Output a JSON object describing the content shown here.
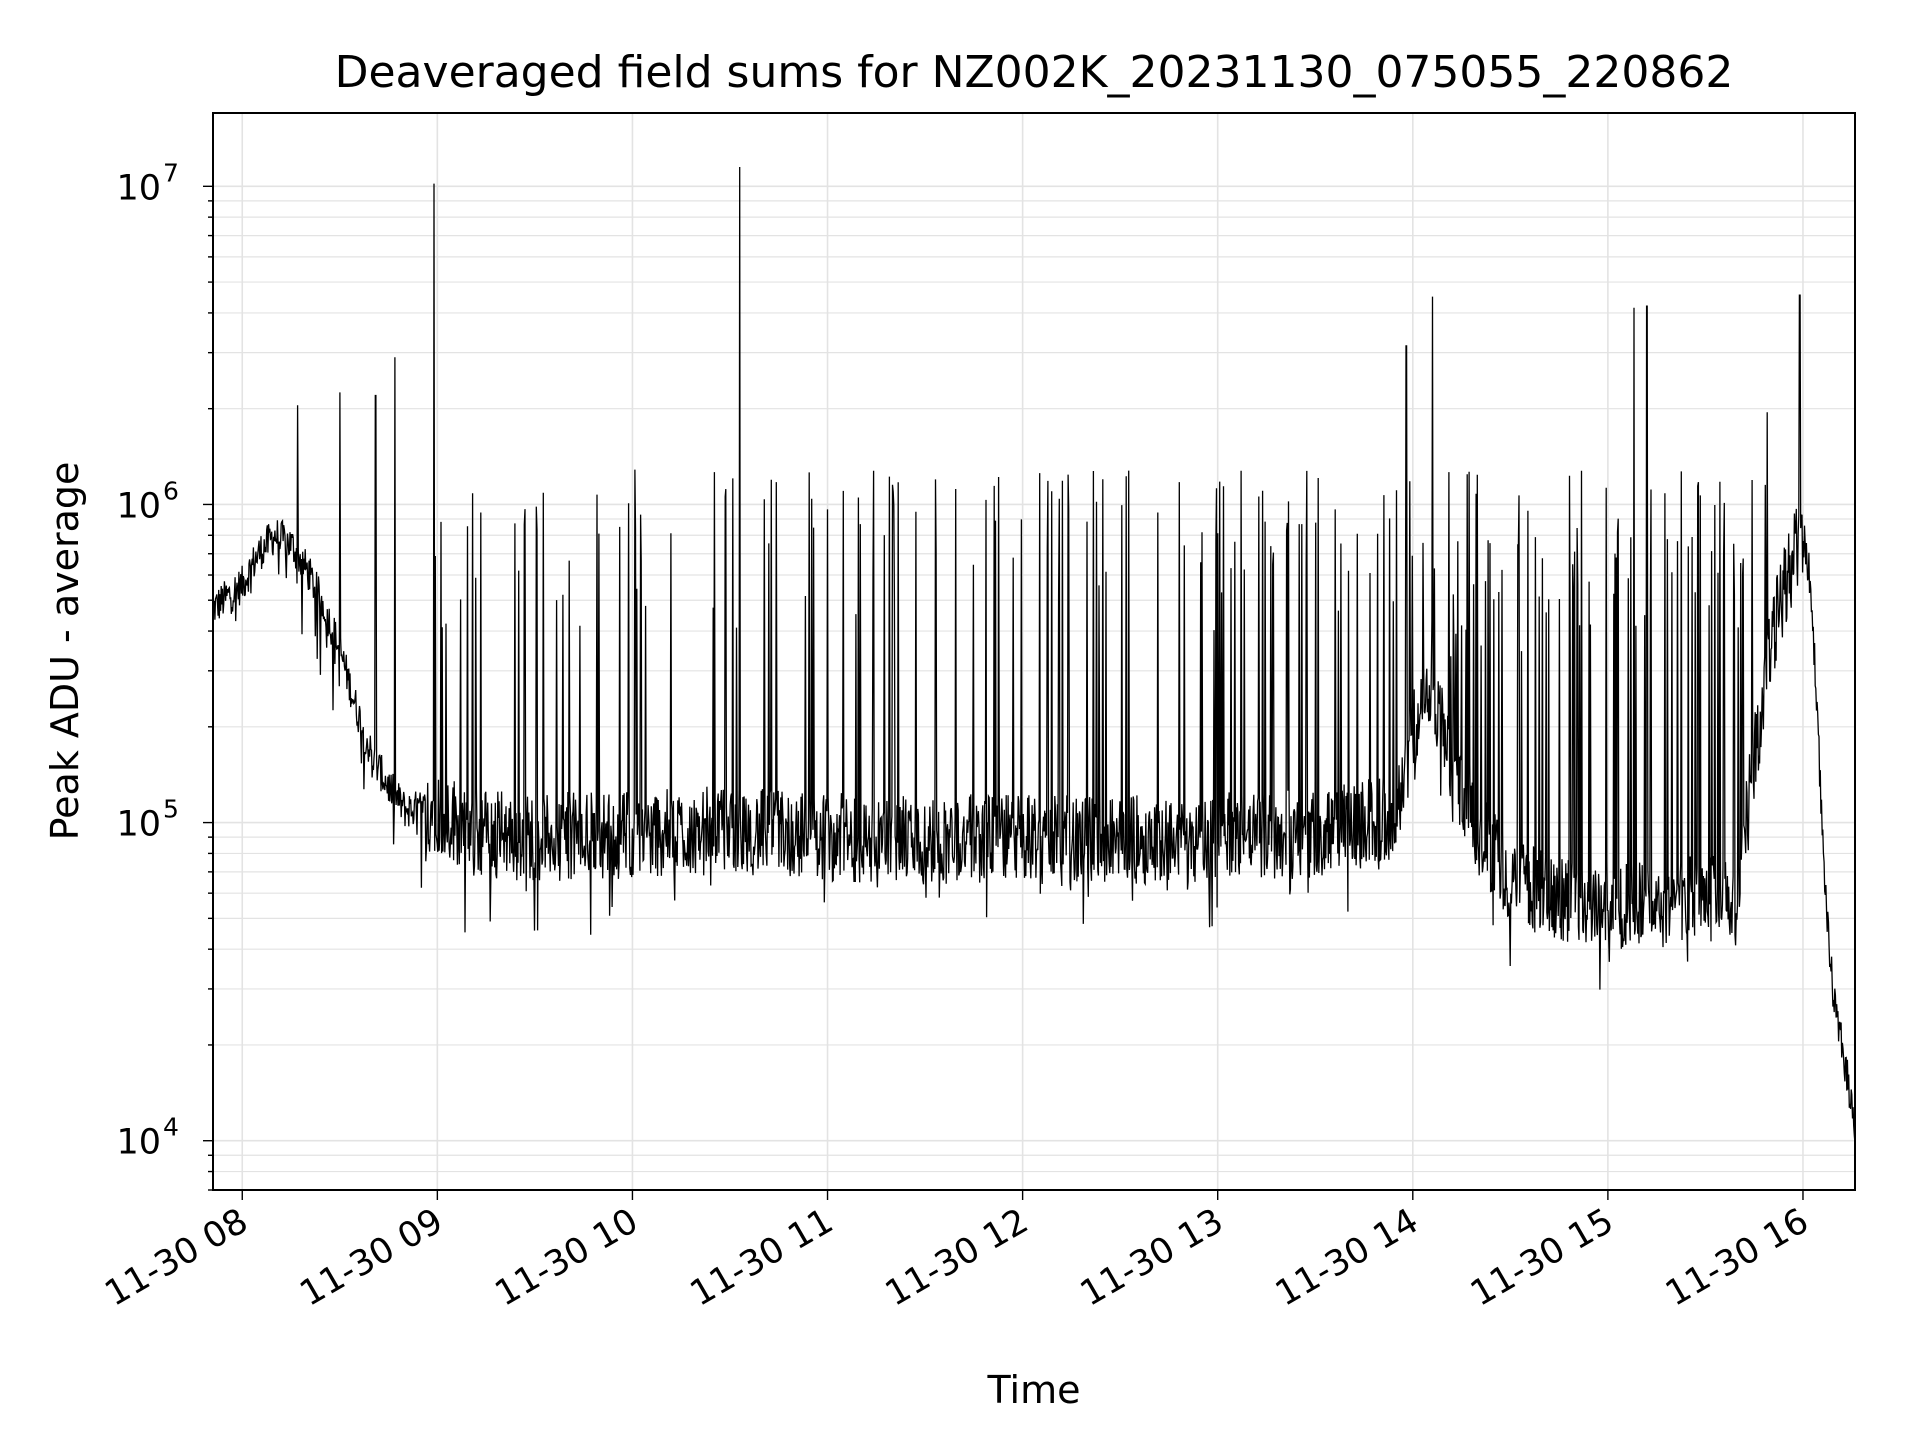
{
  "chart_data": {
    "type": "line",
    "title": "Deaveraged field sums for NZ002K_20231130_075055_220862",
    "xlabel": "Time",
    "ylabel": "Peak ADU - average",
    "yscale": "log",
    "ylim": [
      7000,
      17000000
    ],
    "xlim": [
      "2023-11-30 07:51",
      "2023-11-30 16:16"
    ],
    "grid": true,
    "line_color": "#000000",
    "x_ticks": [
      "11-30 08",
      "11-30 09",
      "11-30 10",
      "11-30 11",
      "11-30 12",
      "11-30 13",
      "11-30 14",
      "11-30 15",
      "11-30 16"
    ],
    "y_ticks": [
      {
        "base": "10",
        "exp": "4",
        "value": 10000
      },
      {
        "base": "10",
        "exp": "5",
        "value": 100000
      },
      {
        "base": "10",
        "exp": "6",
        "value": 1000000
      },
      {
        "base": "10",
        "exp": "7",
        "value": 10000000
      }
    ],
    "series": [
      {
        "x": [
          "2023-11-30 07:51",
          "2023-11-30 08:00",
          "2023-11-30 08:05",
          "2023-11-30 08:10",
          "2023-11-30 08:15",
          "2023-11-30 08:20",
          "2023-11-30 08:25",
          "2023-11-30 08:30",
          "2023-11-30 08:35",
          "2023-11-30 08:40",
          "2023-11-30 08:45",
          "2023-11-30 08:50",
          "2023-11-30 08:55",
          "2023-11-30 09:00",
          "2023-11-30 09:10",
          "2023-11-30 09:30",
          "2023-11-30 10:00",
          "2023-11-30 10:30",
          "2023-11-30 11:00",
          "2023-11-30 11:30",
          "2023-11-30 12:00",
          "2023-11-30 12:30",
          "2023-11-30 13:00",
          "2023-11-30 13:30",
          "2023-11-30 13:55",
          "2023-11-30 14:00",
          "2023-11-30 14:05",
          "2023-11-30 14:10",
          "2023-11-30 14:15",
          "2023-11-30 14:20",
          "2023-11-30 14:30",
          "2023-11-30 14:45",
          "2023-11-30 15:00",
          "2023-11-30 15:15",
          "2023-11-30 15:30",
          "2023-11-30 15:40",
          "2023-11-30 15:45",
          "2023-11-30 15:50",
          "2023-11-30 15:55",
          "2023-11-30 16:00",
          "2023-11-30 16:02",
          "2023-11-30 16:04",
          "2023-11-30 16:06",
          "2023-11-30 16:08",
          "2023-11-30 16:10",
          "2023-11-30 16:12",
          "2023-11-30 16:14",
          "2023-11-30 16:16"
        ],
        "values": [
          470000,
          560000,
          700000,
          800000,
          750000,
          620000,
          480000,
          350000,
          230000,
          160000,
          130000,
          110000,
          110000,
          110000,
          95000,
          90000,
          92000,
          95000,
          90000,
          88000,
          90000,
          88000,
          90000,
          92000,
          105000,
          200000,
          260000,
          180000,
          130000,
          95000,
          65000,
          58000,
          55000,
          55000,
          58000,
          60000,
          160000,
          350000,
          600000,
          800000,
          600000,
          280000,
          90000,
          40000,
          25000,
          20000,
          15000,
          11000
        ]
      }
    ],
    "spikes": [
      {
        "x": "2023-11-30 08:17",
        "value": 2050000
      },
      {
        "x": "2023-11-30 08:30",
        "value": 2250000
      },
      {
        "x": "2023-11-30 08:41",
        "value": 2200000
      },
      {
        "x": "2023-11-30 08:47",
        "value": 2900000
      },
      {
        "x": "2023-11-30 08:59",
        "value": 10200000
      },
      {
        "x": "2023-11-30 10:33",
        "value": 11500000
      },
      {
        "x": "2023-11-30 13:58",
        "value": 3150000
      },
      {
        "x": "2023-11-30 14:06",
        "value": 4500000
      },
      {
        "x": "2023-11-30 15:08",
        "value": 4150000
      },
      {
        "x": "2023-11-30 15:12",
        "value": 4200000
      },
      {
        "x": "2023-11-30 15:49",
        "value": 1950000
      },
      {
        "x": "2023-11-30 15:59",
        "value": 4550000
      }
    ]
  }
}
